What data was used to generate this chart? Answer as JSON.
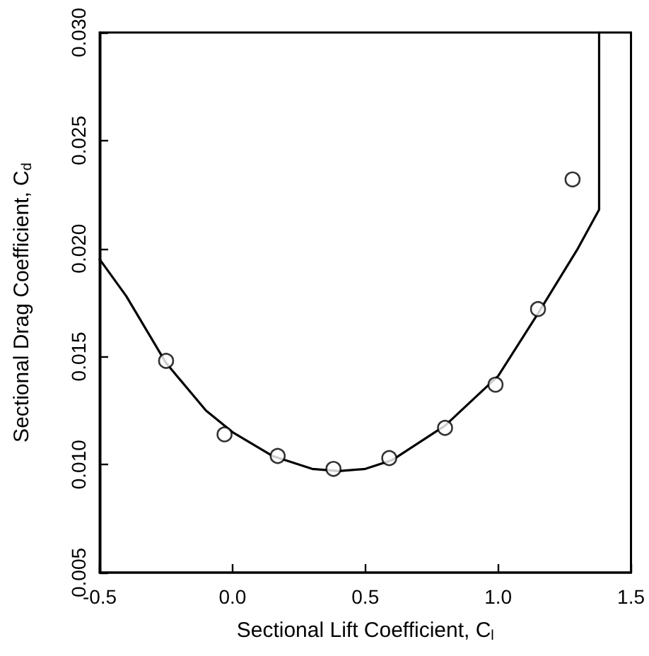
{
  "chart_data": {
    "type": "scatter",
    "xlabel": "Sectional Lift Coefficient, C$_{l}$",
    "ylabel": "Sectional Drag Coefficient, C$_{d}$",
    "xlim": [
      -0.5,
      1.5
    ],
    "xticks": [
      -0.5,
      {
        "value": 0,
        "label": "0.0"
      },
      0.5,
      {
        "value": 1,
        "label": "1.0"
      },
      1.5
    ],
    "ylim": [
      0.005,
      0.03
    ],
    "yticks": [
      0.005,
      {
        "value": 0.01,
        "label": "0.010"
      },
      0.015,
      {
        "value": 0.02,
        "label": "0.020"
      },
      0.025,
      {
        "value": 0.03,
        "label": "0.030"
      }
    ],
    "grid": false,
    "series": [
      {
        "marker": "circle",
        "color": "#000000",
        "x": [
          -0.25,
          -0.03,
          0.17,
          0.38,
          0.59,
          0.8,
          0.99,
          1.15,
          1.28
        ],
        "values": [
          0.0148,
          0.0114,
          0.0104,
          0.0098,
          0.0103,
          0.0117,
          0.0137,
          0.0172,
          0.0232
        ]
      },
      {
        "type": "line",
        "marker": "none",
        "line_style": "solid",
        "color": "#000000",
        "x": [
          -0.5,
          -0.4,
          -0.25,
          -0.1,
          0.0,
          0.15,
          0.3,
          0.4,
          0.5,
          0.6,
          0.8,
          1.0,
          1.15,
          1.3,
          1.38,
          1.38
        ],
        "values": [
          0.0195,
          0.0178,
          0.0147,
          0.0125,
          0.0115,
          0.0104,
          0.0098,
          0.0097,
          0.0098,
          0.0102,
          0.0118,
          0.0141,
          0.017,
          0.02,
          0.0218,
          0.03
        ]
      }
    ]
  }
}
